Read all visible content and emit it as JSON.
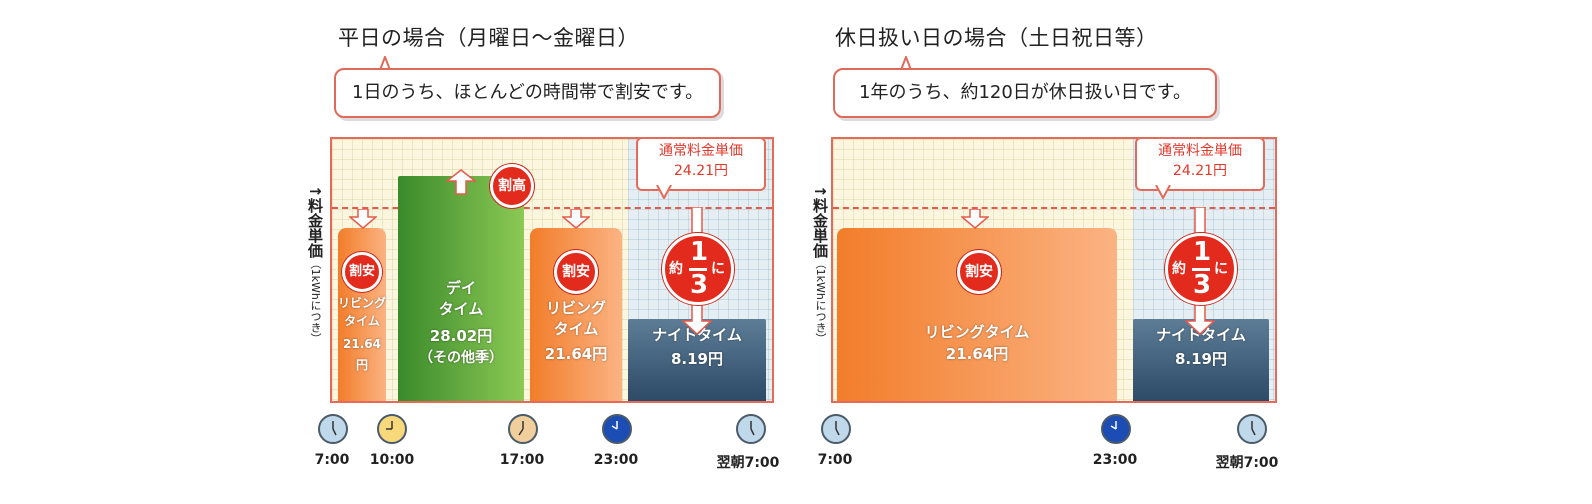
{
  "chart_data": [
    {
      "type": "bar",
      "title": "平日の場合（月曜日～金曜日）",
      "subtitle": "1日のうち、ほとんどの時間帯で割安です。",
      "ylabel": "料金単価",
      "yunit": "（1kWhにつき）",
      "reference": {
        "label": "通常料金単価",
        "value_label": "24.21円",
        "value": 24.21
      },
      "x_ticks": [
        "7:00",
        "10:00",
        "17:00",
        "23:00",
        "翌朝7:00"
      ],
      "bars": [
        {
          "name": "リビングタイム",
          "value": 21.64,
          "label": "リビング\nタイム",
          "value_label": "21.64円",
          "badge": "割安"
        },
        {
          "name": "デイタイム",
          "value": 28.02,
          "label": "デイ\nタイム",
          "value_label": "28.02円",
          "note": "（その他季）",
          "badge": "割高"
        },
        {
          "name": "リビングタイム",
          "value": 21.64,
          "label": "リビング\nタイム",
          "value_label": "21.64円",
          "badge": "割安"
        },
        {
          "name": "ナイトタイム",
          "value": 8.19,
          "label": "ナイトタイム",
          "value_label": "8.19円",
          "badge_top": "約",
          "badge_num": "1",
          "badge_den": "3",
          "badge_suffix": "に"
        }
      ],
      "colors": {
        "living": "#f27d2a",
        "day": "#5aa83a",
        "night": "#3d5b77",
        "accent": "#e32b1d"
      }
    },
    {
      "type": "bar",
      "title": "休日扱い日の場合（土日祝日等）",
      "subtitle": "1年のうち、約120日が休日扱い日です。",
      "ylabel": "料金単価",
      "yunit": "（1kWhにつき）",
      "reference": {
        "label": "通常料金単価",
        "value_label": "24.21円",
        "value": 24.21
      },
      "x_ticks": [
        "7:00",
        "23:00",
        "翌朝7:00"
      ],
      "bars": [
        {
          "name": "リビングタイム",
          "value": 21.64,
          "label": "リビングタイム",
          "value_label": "21.64円",
          "badge": "割安"
        },
        {
          "name": "ナイトタイム",
          "value": 8.19,
          "label": "ナイトタイム",
          "value_label": "8.19円",
          "badge_top": "約",
          "badge_num": "1",
          "badge_den": "3",
          "badge_suffix": "に"
        }
      ],
      "colors": {
        "living": "#f27d2a",
        "night": "#3d5b77",
        "accent": "#e32b1d"
      }
    }
  ]
}
